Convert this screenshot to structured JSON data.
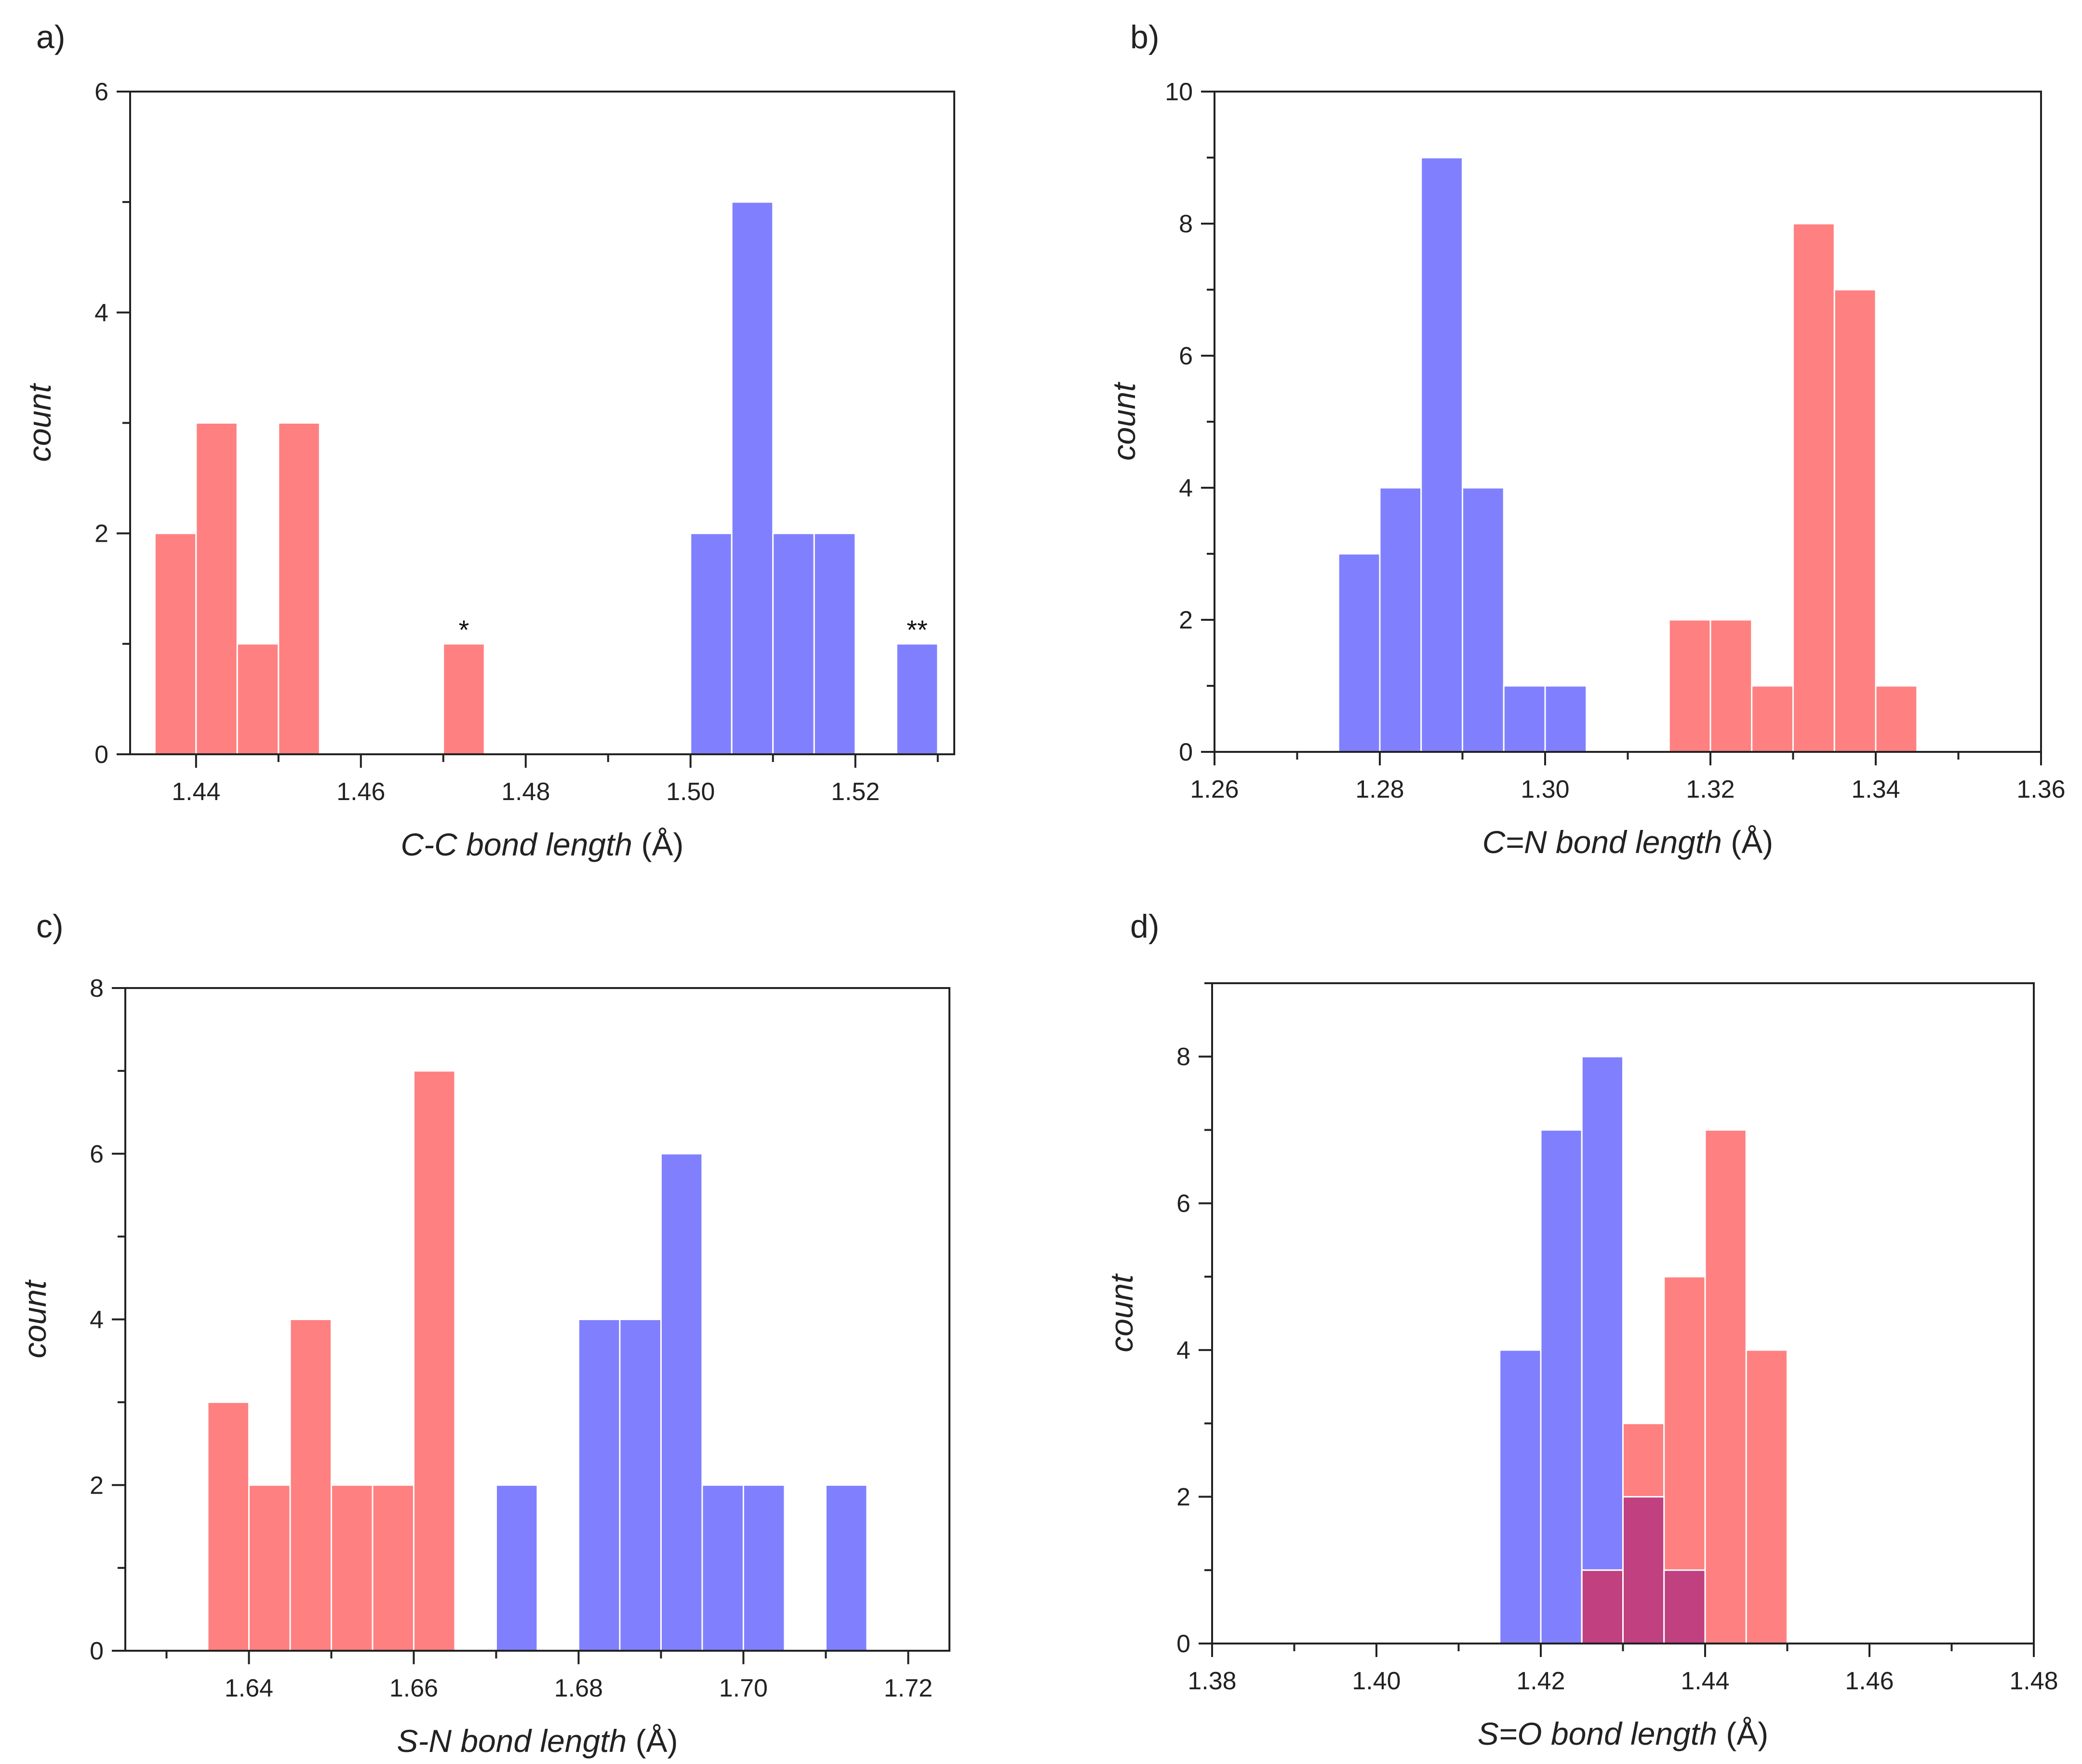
{
  "colors": {
    "series_a": "#ff8080",
    "series_b": "#8080ff",
    "overlap": "#c04080"
  },
  "chart_data": [
    {
      "id": "a",
      "panel_label": "a)",
      "type": "bar",
      "xlabel_italic": "C-C bond length",
      "xlabel_unit": " (Å)",
      "ylabel": "count",
      "xlim": [
        1.432,
        1.532
      ],
      "ylim": [
        0,
        6
      ],
      "xticks": [
        "1.44",
        "1.46",
        "1.48",
        "1.50",
        "1.52"
      ],
      "yticks": [
        "0",
        "2",
        "4",
        "6"
      ],
      "bin_width": 0.005,
      "series": [
        {
          "name": "red",
          "color": "#ff8080",
          "bins": [
            [
              1.435,
              2
            ],
            [
              1.44,
              3
            ],
            [
              1.445,
              1
            ],
            [
              1.45,
              3
            ],
            [
              1.47,
              1
            ]
          ]
        },
        {
          "name": "blue",
          "color": "#8080ff",
          "bins": [
            [
              1.5,
              2
            ],
            [
              1.505,
              5
            ],
            [
              1.51,
              2
            ],
            [
              1.515,
              2
            ],
            [
              1.525,
              1
            ]
          ]
        }
      ],
      "annotations": [
        {
          "x": 1.4725,
          "y": 1,
          "text": "*"
        },
        {
          "x": 1.5275,
          "y": 1,
          "text": "**"
        }
      ]
    },
    {
      "id": "b",
      "panel_label": "b)",
      "type": "bar",
      "xlabel_italic": "C=N bond length",
      "xlabel_unit": " (Å)",
      "ylabel": "count",
      "xlim": [
        1.26,
        1.36
      ],
      "ylim": [
        0,
        10
      ],
      "xticks": [
        "1.26",
        "1.28",
        "1.30",
        "1.32",
        "1.34",
        "1.36"
      ],
      "yticks": [
        "0",
        "2",
        "4",
        "6",
        "8",
        "10"
      ],
      "bin_width": 0.005,
      "series": [
        {
          "name": "blue",
          "color": "#8080ff",
          "bins": [
            [
              1.275,
              3
            ],
            [
              1.28,
              4
            ],
            [
              1.285,
              9
            ],
            [
              1.29,
              4
            ],
            [
              1.295,
              1
            ],
            [
              1.3,
              1
            ]
          ]
        },
        {
          "name": "red",
          "color": "#ff8080",
          "bins": [
            [
              1.315,
              2
            ],
            [
              1.32,
              2
            ],
            [
              1.325,
              1
            ],
            [
              1.33,
              8
            ],
            [
              1.335,
              7
            ],
            [
              1.34,
              1
            ]
          ]
        }
      ],
      "annotations": []
    },
    {
      "id": "c",
      "panel_label": "c)",
      "type": "bar",
      "xlabel_italic": "S-N bond length",
      "xlabel_unit": " (Å)",
      "ylabel": "count",
      "xlim": [
        1.625,
        1.725
      ],
      "ylim": [
        0,
        8
      ],
      "xticks": [
        "1.64",
        "1.66",
        "1.68",
        "1.70",
        "1.72"
      ],
      "yticks": [
        "0",
        "2",
        "4",
        "6",
        "8"
      ],
      "bin_width": 0.005,
      "series": [
        {
          "name": "red",
          "color": "#ff8080",
          "bins": [
            [
              1.635,
              3
            ],
            [
              1.64,
              2
            ],
            [
              1.645,
              4
            ],
            [
              1.65,
              2
            ],
            [
              1.655,
              2
            ],
            [
              1.66,
              7
            ]
          ]
        },
        {
          "name": "blue",
          "color": "#8080ff",
          "bins": [
            [
              1.67,
              2
            ],
            [
              1.68,
              4
            ],
            [
              1.685,
              4
            ],
            [
              1.69,
              6
            ],
            [
              1.695,
              2
            ],
            [
              1.7,
              2
            ],
            [
              1.71,
              2
            ]
          ]
        }
      ],
      "annotations": []
    },
    {
      "id": "d",
      "panel_label": "d)",
      "type": "bar",
      "xlabel_italic": "S=O  bond length",
      "xlabel_unit": " (Å)",
      "ylabel": "count",
      "xlim": [
        1.38,
        1.48
      ],
      "ylim": [
        0,
        9
      ],
      "xticks": [
        "1.38",
        "1.40",
        "1.42",
        "1.44",
        "1.46",
        "1.48"
      ],
      "yticks": [
        "0",
        "2",
        "4",
        "6",
        "8"
      ],
      "bin_width": 0.005,
      "series": [
        {
          "name": "blue",
          "color": "#8080ff",
          "bins": [
            [
              1.415,
              4
            ],
            [
              1.42,
              7
            ],
            [
              1.425,
              8
            ],
            [
              1.43,
              2
            ],
            [
              1.435,
              1
            ]
          ]
        },
        {
          "name": "red",
          "color": "#ff8080",
          "bins": [
            [
              1.425,
              1
            ],
            [
              1.43,
              3
            ],
            [
              1.435,
              5
            ],
            [
              1.44,
              7
            ],
            [
              1.445,
              4
            ]
          ]
        }
      ],
      "overlap_color": "#c04080",
      "annotations": []
    }
  ]
}
